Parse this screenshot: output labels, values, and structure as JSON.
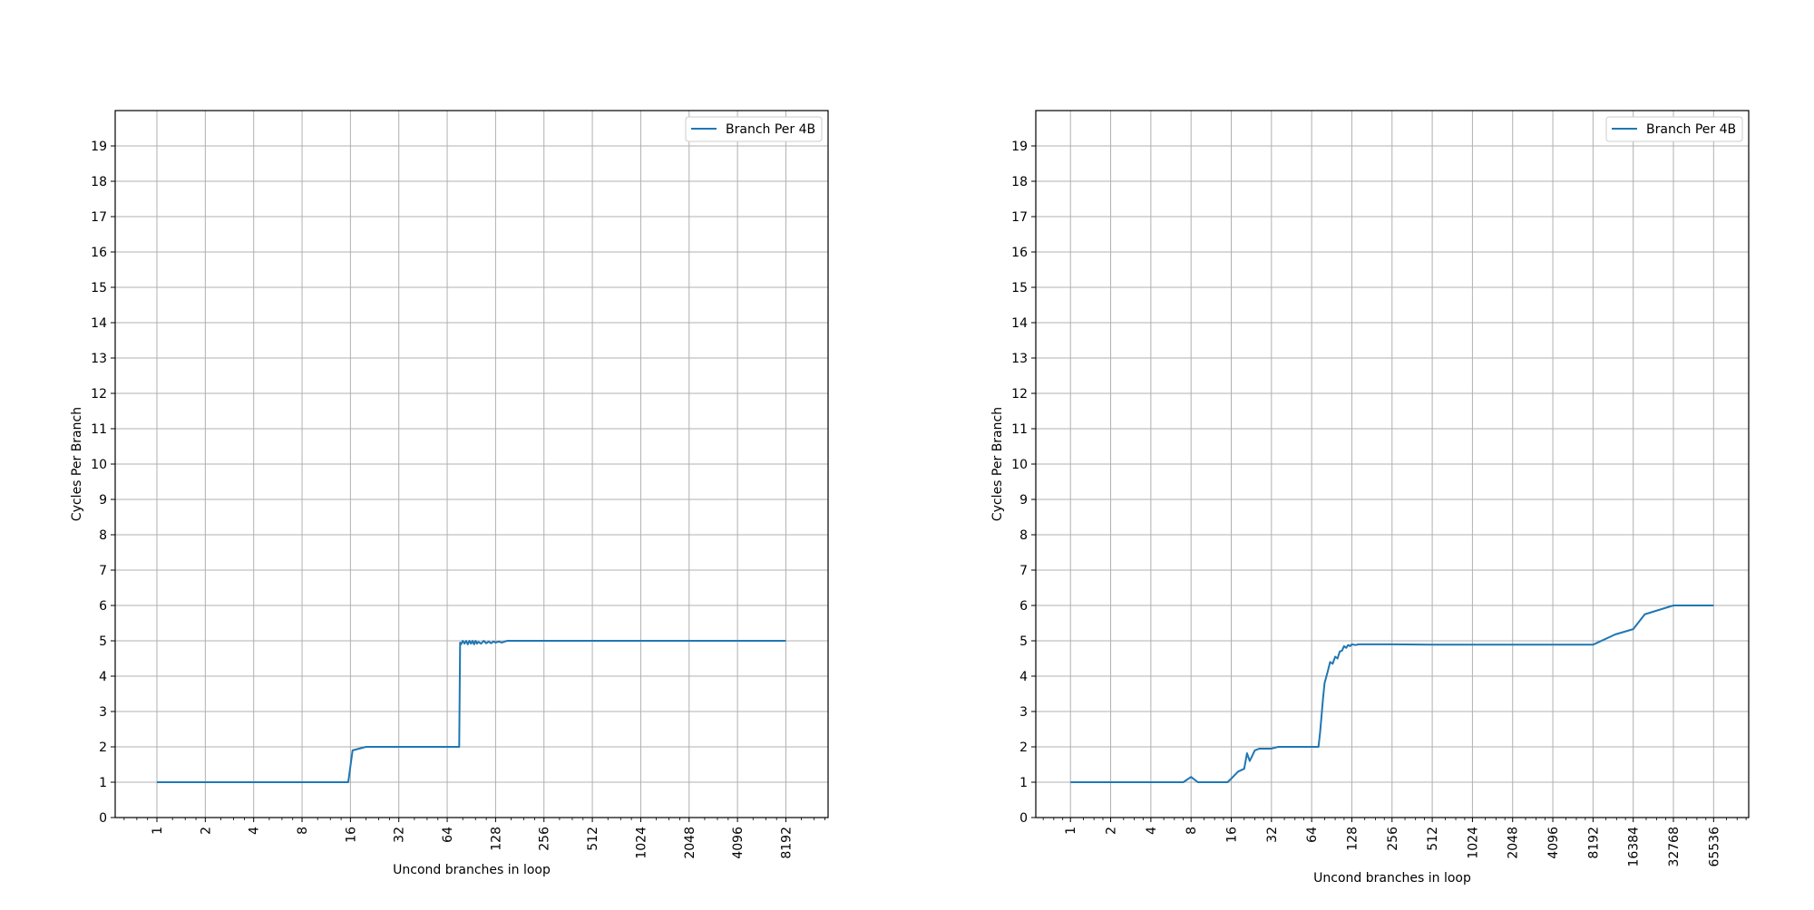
{
  "chart_data": [
    {
      "type": "line",
      "xscale": "log2",
      "xlabel": "Uncond branches in loop",
      "ylabel": "Cycles Per Branch",
      "xlim": [
        0.55,
        15000
      ],
      "ylim": [
        0,
        20
      ],
      "xticks": [
        1,
        2,
        4,
        8,
        16,
        32,
        64,
        128,
        256,
        512,
        1024,
        2048,
        4096,
        8192
      ],
      "xtick_labels": [
        "1",
        "2",
        "4",
        "8",
        "16",
        "32",
        "64",
        "128",
        "256",
        "512",
        "1024",
        "2048",
        "4096",
        "8192"
      ],
      "yticks": [
        0,
        1,
        2,
        3,
        4,
        5,
        6,
        7,
        8,
        9,
        10,
        11,
        12,
        13,
        14,
        15,
        16,
        17,
        18,
        19
      ],
      "ytick_labels": [
        "0",
        "1",
        "2",
        "3",
        "4",
        "5",
        "6",
        "7",
        "8",
        "9",
        "10",
        "11",
        "12",
        "13",
        "14",
        "15",
        "16",
        "17",
        "18",
        "19"
      ],
      "grid": true,
      "legend_position": "top-right",
      "series": [
        {
          "name": "Branch Per 4B",
          "color": "#1f77b4",
          "x": [
            1,
            2,
            4,
            8,
            15.5,
            16.5,
            20,
            32,
            64,
            76,
            77,
            78,
            80,
            82,
            84,
            86,
            88,
            90,
            92,
            94,
            96,
            98,
            100,
            104,
            108,
            112,
            116,
            120,
            124,
            128,
            134,
            140,
            146,
            152,
            160,
            200,
            256,
            512,
            1024,
            2048,
            4096,
            8192
          ],
          "y": [
            1,
            1,
            1,
            1,
            1,
            1.9,
            2,
            2,
            2,
            2,
            4.95,
            4.9,
            5,
            4.92,
            5,
            4.9,
            5,
            4.92,
            5,
            4.9,
            5,
            4.92,
            4.97,
            4.92,
            5,
            4.93,
            4.98,
            4.93,
            4.98,
            4.95,
            4.98,
            4.95,
            4.98,
            5,
            5,
            5,
            5,
            5,
            5,
            5,
            5,
            5
          ]
        }
      ]
    },
    {
      "type": "line",
      "xscale": "log2",
      "xlabel": "Uncond branches in loop",
      "ylabel": "Cycles Per Branch",
      "xlim": [
        0.55,
        120000
      ],
      "ylim": [
        0,
        20
      ],
      "xticks": [
        1,
        2,
        4,
        8,
        16,
        32,
        64,
        128,
        256,
        512,
        1024,
        2048,
        4096,
        8192,
        16384,
        32768,
        65536
      ],
      "xtick_labels": [
        "1",
        "2",
        "4",
        "8",
        "16",
        "32",
        "64",
        "128",
        "256",
        "512",
        "1024",
        "2048",
        "4096",
        "8192",
        "16384",
        "32768",
        "65536"
      ],
      "yticks": [
        0,
        1,
        2,
        3,
        4,
        5,
        6,
        7,
        8,
        9,
        10,
        11,
        12,
        13,
        14,
        15,
        16,
        17,
        18,
        19
      ],
      "ytick_labels": [
        "0",
        "1",
        "2",
        "3",
        "4",
        "5",
        "6",
        "7",
        "8",
        "9",
        "10",
        "11",
        "12",
        "13",
        "14",
        "15",
        "16",
        "17",
        "18",
        "19"
      ],
      "grid": true,
      "legend_position": "top-right",
      "series": [
        {
          "name": "Branch Per 4B",
          "color": "#1f77b4",
          "x": [
            1,
            2,
            4,
            7,
            8,
            9,
            12,
            15,
            16,
            18,
            20,
            21,
            22,
            23,
            24,
            26,
            28,
            32,
            36,
            40,
            48,
            56,
            64,
            72,
            74,
            76,
            78,
            80,
            84,
            88,
            92,
            96,
            100,
            104,
            108,
            112,
            116,
            120,
            124,
            128,
            136,
            144,
            160,
            192,
            256,
            512,
            1024,
            2048,
            4096,
            8192,
            12000,
            16384,
            20000,
            32768,
            65536
          ],
          "y": [
            1,
            1,
            1,
            1,
            1.15,
            1,
            1,
            1,
            1.1,
            1.3,
            1.38,
            1.82,
            1.6,
            1.75,
            1.9,
            1.95,
            1.95,
            1.95,
            2,
            2,
            2,
            2,
            2,
            2,
            2.4,
            2.9,
            3.4,
            3.8,
            4.1,
            4.4,
            4.35,
            4.55,
            4.5,
            4.7,
            4.72,
            4.85,
            4.8,
            4.88,
            4.85,
            4.9,
            4.88,
            4.9,
            4.9,
            4.9,
            4.9,
            4.89,
            4.89,
            4.89,
            4.89,
            4.89,
            5.18,
            5.33,
            5.75,
            6,
            6
          ]
        }
      ]
    }
  ]
}
